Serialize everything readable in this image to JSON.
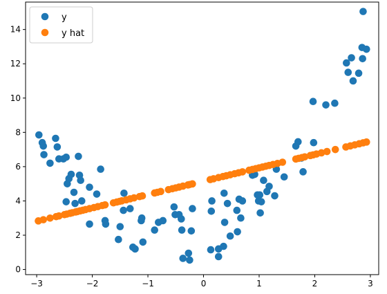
{
  "chart_data": {
    "type": "scatter",
    "title": "",
    "xlabel": "",
    "ylabel": "",
    "xlim": [
      -3.2,
      3.15
    ],
    "ylim": [
      -0.3,
      15.6
    ],
    "xticks": [
      -3,
      -2,
      -1,
      0,
      1,
      2,
      3
    ],
    "yticks": [
      0,
      2,
      4,
      6,
      8,
      10,
      12,
      14
    ],
    "grid": false,
    "legend": "top-left",
    "series": [
      {
        "name": "y",
        "color": "#1f77b4",
        "points": [
          [
            -2.96,
            7.85
          ],
          [
            -2.9,
            7.4
          ],
          [
            -2.88,
            7.2
          ],
          [
            -2.87,
            6.7
          ],
          [
            -2.76,
            6.2
          ],
          [
            -2.66,
            7.65
          ],
          [
            -2.63,
            7.15
          ],
          [
            -2.6,
            6.45
          ],
          [
            -2.52,
            6.45
          ],
          [
            -2.47,
            6.55
          ],
          [
            -2.47,
            3.95
          ],
          [
            -2.45,
            5.0
          ],
          [
            -2.42,
            5.3
          ],
          [
            -2.38,
            5.55
          ],
          [
            -2.33,
            4.5
          ],
          [
            -2.31,
            3.85
          ],
          [
            -2.25,
            6.6
          ],
          [
            -2.23,
            5.5
          ],
          [
            -2.21,
            5.2
          ],
          [
            -2.19,
            4.0
          ],
          [
            -2.05,
            4.8
          ],
          [
            -2.05,
            2.65
          ],
          [
            -1.92,
            4.4
          ],
          [
            -1.85,
            5.85
          ],
          [
            -1.77,
            2.85
          ],
          [
            -1.76,
            2.65
          ],
          [
            -1.53,
            1.75
          ],
          [
            -1.5,
            2.5
          ],
          [
            -1.44,
            3.45
          ],
          [
            -1.43,
            4.45
          ],
          [
            -1.32,
            3.55
          ],
          [
            -1.27,
            1.3
          ],
          [
            -1.23,
            1.2
          ],
          [
            -1.12,
            2.85
          ],
          [
            -1.11,
            3.0
          ],
          [
            -1.09,
            1.6
          ],
          [
            -0.88,
            2.3
          ],
          [
            -0.81,
            2.75
          ],
          [
            -0.73,
            2.85
          ],
          [
            -0.53,
            3.65
          ],
          [
            -0.51,
            3.2
          ],
          [
            -0.44,
            3.2
          ],
          [
            -0.4,
            2.95
          ],
          [
            -0.39,
            2.3
          ],
          [
            -0.37,
            0.65
          ],
          [
            -0.27,
            0.95
          ],
          [
            -0.25,
            0.55
          ],
          [
            -0.22,
            2.25
          ],
          [
            -0.2,
            3.55
          ],
          [
            0.13,
            1.15
          ],
          [
            0.14,
            3.4
          ],
          [
            0.15,
            4.0
          ],
          [
            0.27,
            0.75
          ],
          [
            0.27,
            1.2
          ],
          [
            0.36,
            1.35
          ],
          [
            0.37,
            4.45
          ],
          [
            0.38,
            2.75
          ],
          [
            0.43,
            3.85
          ],
          [
            0.48,
            1.95
          ],
          [
            0.6,
            3.45
          ],
          [
            0.61,
            2.2
          ],
          [
            0.64,
            4.1
          ],
          [
            0.67,
            3.0
          ],
          [
            0.7,
            4.0
          ],
          [
            0.88,
            5.5
          ],
          [
            0.92,
            5.55
          ],
          [
            0.97,
            4.35
          ],
          [
            0.99,
            4.0
          ],
          [
            1.01,
            4.35
          ],
          [
            1.02,
            3.3
          ],
          [
            1.04,
            3.95
          ],
          [
            1.08,
            5.2
          ],
          [
            1.14,
            4.55
          ],
          [
            1.18,
            4.85
          ],
          [
            1.28,
            4.3
          ],
          [
            1.31,
            5.85
          ],
          [
            1.45,
            5.4
          ],
          [
            1.66,
            7.2
          ],
          [
            1.7,
            7.45
          ],
          [
            1.76,
            6.5
          ],
          [
            1.79,
            5.7
          ],
          [
            1.97,
            9.8
          ],
          [
            1.98,
            7.4
          ],
          [
            2.2,
            9.6
          ],
          [
            2.36,
            9.7
          ],
          [
            2.57,
            12.05
          ],
          [
            2.6,
            11.5
          ],
          [
            2.66,
            12.35
          ],
          [
            2.69,
            11.0
          ],
          [
            2.79,
            11.45
          ],
          [
            2.85,
            12.95
          ],
          [
            2.86,
            12.3
          ],
          [
            2.87,
            15.05
          ],
          [
            2.93,
            12.85
          ]
        ]
      },
      {
        "name": "y hat",
        "color": "#ff7f0e",
        "x": [
          -2.97,
          -2.88,
          -2.76,
          -2.65,
          -2.6,
          -2.5,
          -2.46,
          -2.4,
          -2.36,
          -2.3,
          -2.27,
          -2.22,
          -2.17,
          -2.12,
          -2.05,
          -1.97,
          -1.9,
          -1.82,
          -1.77,
          -1.62,
          -1.56,
          -1.51,
          -1.47,
          -1.39,
          -1.32,
          -1.25,
          -1.15,
          -1.1,
          -0.88,
          -0.83,
          -0.77,
          -0.63,
          -0.56,
          -0.5,
          -0.44,
          -0.37,
          -0.28,
          -0.25,
          -0.2,
          0.12,
          0.18,
          0.27,
          0.35,
          0.41,
          0.48,
          0.56,
          0.63,
          0.7,
          0.82,
          0.88,
          0.94,
          1.0,
          1.06,
          1.12,
          1.18,
          1.25,
          1.33,
          1.42,
          1.66,
          1.71,
          1.77,
          1.82,
          1.92,
          1.97,
          2.03,
          2.12,
          2.22,
          2.37,
          2.56,
          2.64,
          2.72,
          2.8,
          2.87,
          2.93
        ],
        "slope": 0.78,
        "intercept": 5.15
      }
    ]
  }
}
